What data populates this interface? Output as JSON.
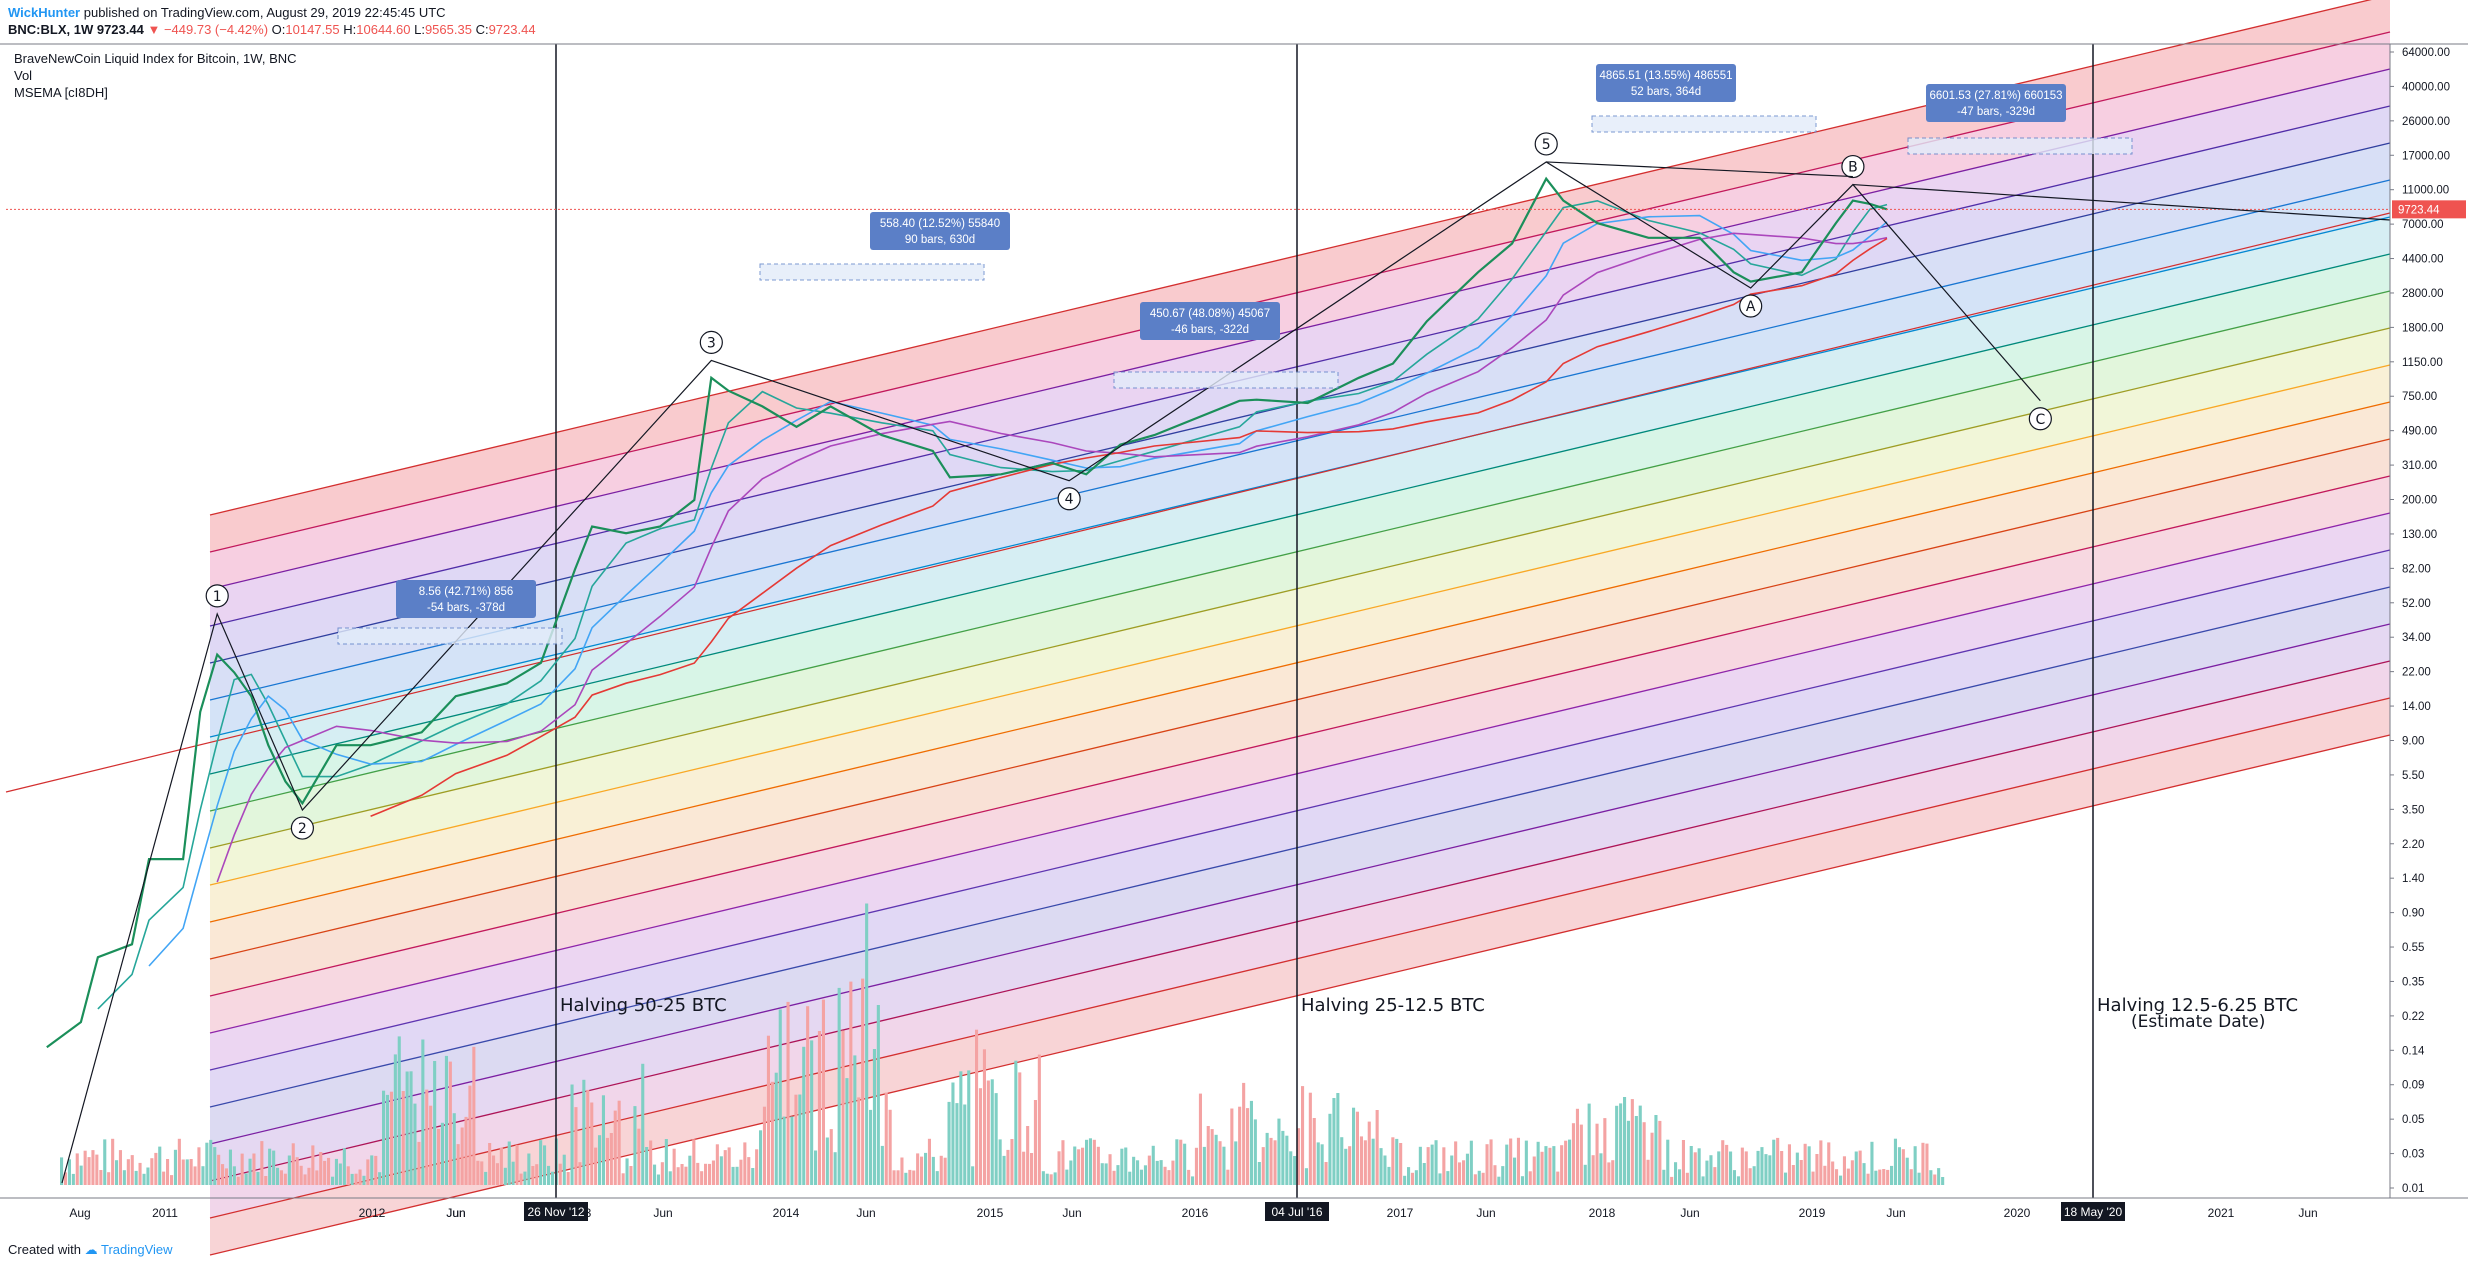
{
  "header": {
    "publisher": "WickHunter",
    "published_text": " published on TradingView.com, August 29, 2019 22:45:45 UTC",
    "symbol": "BNC:BLX, 1W",
    "price": "9723.44",
    "change": "▼ −449.73 (−4.42%)",
    "o_label": "O:",
    "o_val": "10147.55",
    "h_label": "H:",
    "h_val": "10644.60",
    "l_label": "L:",
    "l_val": "9565.35",
    "c_label": "C:",
    "c_val": "9723.44"
  },
  "legend": {
    "title": "BraveNewCoin Liquid Index for Bitcoin, 1W, BNC",
    "vol": "Vol",
    "indicator": "MSEMA [cI8DH]"
  },
  "footer": {
    "created_with": "Created with",
    "brand": "TradingView"
  },
  "chart_data": {
    "type": "line",
    "scale": "log",
    "price_tag": "9723.44",
    "y_ticks": [
      "64000.00",
      "40000.00",
      "26000.00",
      "17000.00",
      "11000.00",
      "7000.00",
      "4400.00",
      "2800.00",
      "1800.00",
      "1150.00",
      "750.00",
      "490.00",
      "310.00",
      "200.00",
      "130.00",
      "82.00",
      "52.00",
      "34.00",
      "22.00",
      "14.00",
      "9.00",
      "5.50",
      "3.50",
      "2.20",
      "1.40",
      "0.90",
      "0.55",
      "0.35",
      "0.22",
      "0.14",
      "0.09",
      "0.05",
      "0.03",
      "0.01"
    ],
    "x_ticks": [
      "Aug",
      "2011",
      "Jun",
      "2012",
      "Jun",
      "2013",
      "Jun",
      "2014",
      "Jun",
      "2015",
      "Jun",
      "2016",
      "2017",
      "Jun",
      "2018",
      "Jun",
      "2019",
      "Jun",
      "2020",
      "2021",
      "Jun"
    ],
    "highlight_dates": [
      "26 Nov '12",
      "04 Jul '16",
      "18 May '20"
    ],
    "halvings": [
      {
        "label": "Halving 50-25 BTC",
        "date": "26 Nov '12"
      },
      {
        "label": "Halving 25-12.5 BTC",
        "date": "04 Jul '16"
      },
      {
        "label": "Halving 12.5-6.25 BTC",
        "sub": "(Estimate Date)",
        "date": "18 May '20"
      }
    ],
    "wave_labels": [
      "1",
      "2",
      "3",
      "4",
      "5",
      "A",
      "B",
      "C"
    ],
    "wave_points": [
      {
        "label": "1",
        "date": "2011-06",
        "price": 32
      },
      {
        "label": "2",
        "date": "2011-11",
        "price": 2.0
      },
      {
        "label": "3",
        "date": "2013-11",
        "price": 1150
      },
      {
        "label": "4",
        "date": "2015-08",
        "price": 210
      },
      {
        "label": "5",
        "date": "2017-12",
        "price": 19000
      },
      {
        "label": "A",
        "date": "2018-12",
        "price": 3200
      },
      {
        "label": "B",
        "date": "2019-06",
        "price": 13800
      },
      {
        "label": "C",
        "date": "2020-05",
        "price": 650
      }
    ],
    "measure_labels": [
      {
        "line1": "8.56 (42.71%) 856",
        "line2": "-54 bars, -378d"
      },
      {
        "line1": "558.40 (12.52%) 55840",
        "line2": "90 bars, 630d"
      },
      {
        "line1": "450.67 (48.08%) 45067",
        "line2": "-46 bars, -322d"
      },
      {
        "line1": "4865.51 (13.55%) 486551",
        "line2": "52 bars, 364d"
      },
      {
        "line1": "6601.53 (27.81%) 660153",
        "line2": "-47 bars, -329d"
      }
    ],
    "price_path": [
      [
        "2010-08",
        0.07
      ],
      [
        "2010-10",
        0.1
      ],
      [
        "2010-11",
        0.25
      ],
      [
        "2011-01",
        0.3
      ],
      [
        "2011-02",
        1.0
      ],
      [
        "2011-04",
        1.0
      ],
      [
        "2011-05",
        8
      ],
      [
        "2011-06",
        18
      ],
      [
        "2011-07",
        14
      ],
      [
        "2011-08",
        10
      ],
      [
        "2011-09",
        5
      ],
      [
        "2011-10",
        3
      ],
      [
        "2011-11",
        2.2
      ],
      [
        "2012-01",
        5
      ],
      [
        "2012-03",
        5
      ],
      [
        "2012-06",
        6
      ],
      [
        "2012-08",
        10
      ],
      [
        "2012-11",
        12
      ],
      [
        "2013-01",
        16
      ],
      [
        "2013-03",
        60
      ],
      [
        "2013-04",
        110
      ],
      [
        "2013-06",
        100
      ],
      [
        "2013-08",
        110
      ],
      [
        "2013-10",
        160
      ],
      [
        "2013-11",
        900
      ],
      [
        "2013-12",
        750
      ],
      [
        "2014-02",
        600
      ],
      [
        "2014-04",
        450
      ],
      [
        "2014-06",
        600
      ],
      [
        "2014-09",
        400
      ],
      [
        "2014-12",
        320
      ],
      [
        "2015-01",
        220
      ],
      [
        "2015-04",
        230
      ],
      [
        "2015-07",
        270
      ],
      [
        "2015-09",
        230
      ],
      [
        "2015-11",
        350
      ],
      [
        "2016-01",
        400
      ],
      [
        "2016-06",
        650
      ],
      [
        "2016-07",
        660
      ],
      [
        "2016-10",
        630
      ],
      [
        "2017-01",
        900
      ],
      [
        "2017-03",
        1100
      ],
      [
        "2017-05",
        2000
      ],
      [
        "2017-08",
        4000
      ],
      [
        "2017-10",
        6000
      ],
      [
        "2017-12",
        15000
      ],
      [
        "2018-01",
        11000
      ],
      [
        "2018-03",
        8000
      ],
      [
        "2018-06",
        6500
      ],
      [
        "2018-09",
        6500
      ],
      [
        "2018-11",
        4000
      ],
      [
        "2018-12",
        3500
      ],
      [
        "2019-03",
        4000
      ],
      [
        "2019-05",
        8000
      ],
      [
        "2019-06",
        11000
      ],
      [
        "2019-07",
        10500
      ],
      [
        "2019-08",
        9723
      ]
    ],
    "volume_bars": 480
  }
}
